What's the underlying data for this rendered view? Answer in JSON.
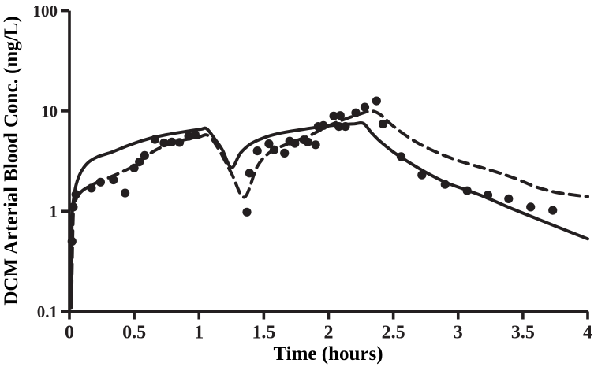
{
  "figure": {
    "background_color": "#ffffff",
    "ink_color": "#231f20"
  },
  "chart_data": {
    "type": "line",
    "title": "",
    "xlabel": "Time (hours)",
    "ylabel": "DCM Arterial Blood Conc. (mg/L)",
    "grid": false,
    "legend": "none",
    "x_axis": {
      "scale": "linear",
      "min": 0,
      "max": 4,
      "ticks": [
        0,
        0.5,
        1,
        1.5,
        2,
        2.5,
        3,
        3.5,
        4
      ],
      "tick_labels": [
        "0",
        "0.5",
        "1",
        "1.5",
        "2",
        "2.5",
        "3",
        "3.5",
        "4"
      ]
    },
    "y_axis": {
      "scale": "log10",
      "min": 0.1,
      "max": 100,
      "ticks": [
        0.1,
        1,
        10,
        100
      ],
      "tick_labels": [
        "0.1",
        "1",
        "10",
        "100"
      ]
    },
    "series": [
      {
        "name": "model_curve_solid",
        "style": "solid-line",
        "points": [
          [
            0.012,
            0.11
          ],
          [
            0.02,
            0.8
          ],
          [
            0.035,
            1.4
          ],
          [
            0.06,
            2.0
          ],
          [
            0.1,
            2.6
          ],
          [
            0.15,
            3.1
          ],
          [
            0.22,
            3.5
          ],
          [
            0.33,
            3.9
          ],
          [
            0.45,
            4.5
          ],
          [
            0.55,
            5.0
          ],
          [
            0.65,
            5.45
          ],
          [
            0.75,
            5.8
          ],
          [
            0.85,
            6.1
          ],
          [
            0.95,
            6.4
          ],
          [
            1.02,
            6.6
          ],
          [
            1.06,
            6.65
          ],
          [
            1.12,
            5.3
          ],
          [
            1.18,
            4.1
          ],
          [
            1.25,
            2.72
          ],
          [
            1.32,
            3.8
          ],
          [
            1.4,
            4.7
          ],
          [
            1.5,
            5.4
          ],
          [
            1.6,
            5.9
          ],
          [
            1.7,
            6.25
          ],
          [
            1.8,
            6.55
          ],
          [
            1.9,
            6.85
          ],
          [
            2.0,
            7.1
          ],
          [
            2.1,
            7.3
          ],
          [
            2.2,
            7.45
          ],
          [
            2.27,
            7.5
          ],
          [
            2.33,
            6.1
          ],
          [
            2.4,
            4.95
          ],
          [
            2.5,
            3.9
          ],
          [
            2.6,
            3.2
          ],
          [
            2.75,
            2.45
          ],
          [
            2.9,
            1.95
          ],
          [
            3.05,
            1.65
          ],
          [
            3.2,
            1.4
          ],
          [
            3.4,
            1.08
          ],
          [
            3.6,
            0.85
          ],
          [
            3.8,
            0.67
          ],
          [
            4.0,
            0.53
          ]
        ]
      },
      {
        "name": "model_curve_dashed",
        "style": "dashed-line",
        "points": [
          [
            0.015,
            0.11
          ],
          [
            0.03,
            0.95
          ],
          [
            0.05,
            1.3
          ],
          [
            0.1,
            1.6
          ],
          [
            0.2,
            1.9
          ],
          [
            0.3,
            2.15
          ],
          [
            0.4,
            2.45
          ],
          [
            0.5,
            2.85
          ],
          [
            0.6,
            3.6
          ],
          [
            0.7,
            4.3
          ],
          [
            0.8,
            4.8
          ],
          [
            0.9,
            5.2
          ],
          [
            1.0,
            5.5
          ],
          [
            1.07,
            5.7
          ],
          [
            1.15,
            4.2
          ],
          [
            1.25,
            2.4
          ],
          [
            1.35,
            1.38
          ],
          [
            1.45,
            2.8
          ],
          [
            1.55,
            3.9
          ],
          [
            1.65,
            4.5
          ],
          [
            1.75,
            5.05
          ],
          [
            1.85,
            5.65
          ],
          [
            1.95,
            6.6
          ],
          [
            2.05,
            7.6
          ],
          [
            2.15,
            8.5
          ],
          [
            2.25,
            9.4
          ],
          [
            2.33,
            10.0
          ],
          [
            2.4,
            9.2
          ],
          [
            2.48,
            7.4
          ],
          [
            2.58,
            5.9
          ],
          [
            2.7,
            4.7
          ],
          [
            2.85,
            3.8
          ],
          [
            3.0,
            3.2
          ],
          [
            3.15,
            2.8
          ],
          [
            3.3,
            2.45
          ],
          [
            3.45,
            2.1
          ],
          [
            3.6,
            1.75
          ],
          [
            3.75,
            1.55
          ],
          [
            3.9,
            1.45
          ],
          [
            4.0,
            1.4
          ]
        ]
      },
      {
        "name": "observed_data_points",
        "style": "scatter-filled-circle",
        "points": [
          [
            0.02,
            0.5
          ],
          [
            0.03,
            1.1
          ],
          [
            0.05,
            1.47
          ],
          [
            0.17,
            1.7
          ],
          [
            0.24,
            1.95
          ],
          [
            0.34,
            2.05
          ],
          [
            0.43,
            1.52
          ],
          [
            0.5,
            2.7
          ],
          [
            0.54,
            3.1
          ],
          [
            0.58,
            3.6
          ],
          [
            0.66,
            5.2
          ],
          [
            0.73,
            4.8
          ],
          [
            0.79,
            4.9
          ],
          [
            0.85,
            4.85
          ],
          [
            0.92,
            5.6
          ],
          [
            0.97,
            5.8
          ],
          [
            1.37,
            0.98
          ],
          [
            1.39,
            2.4
          ],
          [
            1.45,
            4.0
          ],
          [
            1.54,
            4.7
          ],
          [
            1.58,
            4.1
          ],
          [
            1.66,
            3.8
          ],
          [
            1.7,
            5.0
          ],
          [
            1.74,
            4.75
          ],
          [
            1.81,
            5.15
          ],
          [
            1.84,
            4.9
          ],
          [
            1.9,
            4.6
          ],
          [
            1.92,
            7.0
          ],
          [
            1.96,
            7.15
          ],
          [
            2.04,
            8.9
          ],
          [
            2.09,
            9.0
          ],
          [
            2.08,
            7.0
          ],
          [
            2.13,
            7.0
          ],
          [
            2.21,
            9.6
          ],
          [
            2.28,
            10.9
          ],
          [
            2.37,
            12.6
          ],
          [
            2.42,
            7.4
          ],
          [
            2.56,
            3.5
          ],
          [
            2.72,
            2.3
          ],
          [
            2.9,
            1.85
          ],
          [
            3.07,
            1.6
          ],
          [
            3.23,
            1.45
          ],
          [
            3.39,
            1.33
          ],
          [
            3.56,
            1.1
          ],
          [
            3.73,
            1.02
          ]
        ]
      }
    ]
  }
}
